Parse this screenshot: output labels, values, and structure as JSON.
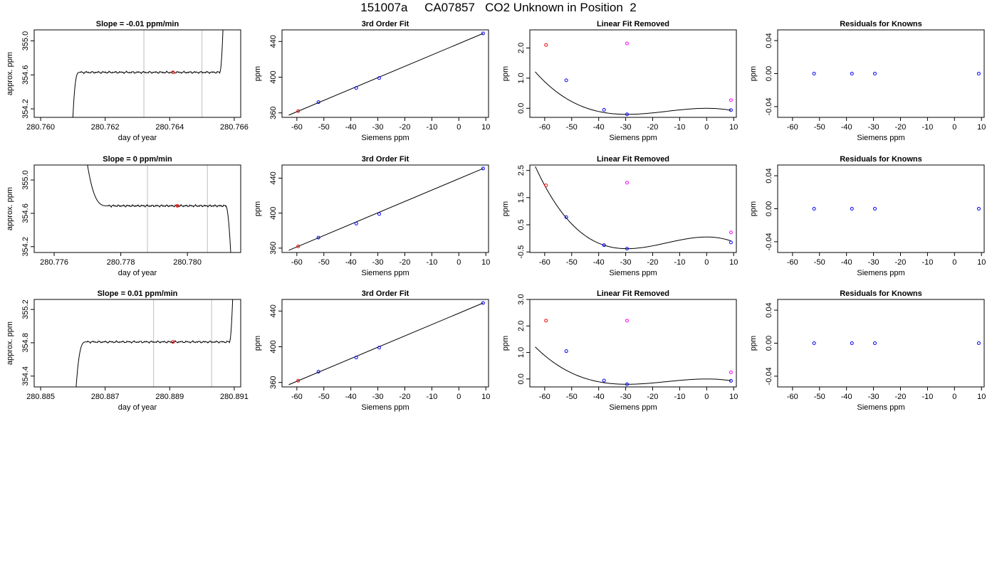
{
  "title": "151007a     CA07857   CO2 Unknown in Position  2",
  "chart_data": [
    {
      "panel": "row1-col1",
      "type": "line",
      "title": "Slope =  -0.01  ppm/min",
      "xlabel": "day of year",
      "ylabel": "approx. ppm",
      "xlim": [
        280.7598,
        280.7662
      ],
      "ylim": [
        354.1,
        355.13
      ],
      "xticks": [
        "280.760",
        "280.762",
        "280.764",
        "280.766"
      ],
      "yticks": [
        "354.2",
        "354.6",
        "355.0"
      ],
      "vlines": [
        280.7632,
        280.765
      ],
      "marker": {
        "x": 280.7641,
        "y": 354.63,
        "color": "#ff0000"
      },
      "trace": {
        "x_start": 280.761,
        "x_rise_end": 280.7612,
        "x_plateau_end": 280.76555,
        "x_end": 280.76565,
        "y_start": 354.1,
        "plateau": 354.63,
        "y_end": 355.13
      }
    },
    {
      "panel": "row1-col2",
      "type": "scatter",
      "title": "3rd Order Fit",
      "xlabel": "Siemens ppm",
      "ylabel": "ppm",
      "xlim": [
        -65.5,
        11
      ],
      "ylim": [
        355,
        453
      ],
      "xticks": [
        "-60",
        "-50",
        "-40",
        "-30",
        "-20",
        "-10",
        "0",
        "10"
      ],
      "yticks": [
        "360",
        "400",
        "440"
      ],
      "points": [
        {
          "x": -59.5,
          "y": 362,
          "color": "#ff0000"
        },
        {
          "x": -52,
          "y": 372,
          "color": "#0000ff"
        },
        {
          "x": -38,
          "y": 388,
          "color": "#0000ff"
        },
        {
          "x": -29.5,
          "y": 399,
          "color": "#0000ff"
        },
        {
          "x": 9,
          "y": 449,
          "color": "#0000ff"
        }
      ],
      "fit": {
        "x": [
          -63,
          9
        ],
        "y": [
          357.5,
          449
        ]
      }
    },
    {
      "panel": "row1-col3",
      "type": "scatter",
      "title": "Linear Fit Removed",
      "xlabel": "Siemens ppm",
      "ylabel": "ppm",
      "xlim": [
        -65.5,
        11
      ],
      "ylim": [
        -0.3,
        2.6
      ],
      "xticks": [
        "-60",
        "-50",
        "-40",
        "-30",
        "-20",
        "-10",
        "0",
        "10"
      ],
      "yticks": [
        "0.0",
        "1.0",
        "2.0"
      ],
      "points": [
        {
          "x": -59.5,
          "y": 2.1,
          "color": "#ff0000"
        },
        {
          "x": -52,
          "y": 0.93,
          "color": "#0000ff"
        },
        {
          "x": -38,
          "y": -0.05,
          "color": "#0000ff"
        },
        {
          "x": -29.5,
          "y": -0.2,
          "color": "#0000ff"
        },
        {
          "x": 9,
          "y": -0.06,
          "color": "#0000ff"
        },
        {
          "x": -29.5,
          "y": 2.15,
          "color": "#ff00ff"
        },
        {
          "x": 9,
          "y": 0.27,
          "color": "#ff00ff"
        }
      ],
      "curve": {
        "x_from": -63.5,
        "x_to": 9,
        "cubic": {
          "x0": -29.5,
          "x1": 0,
          "y0": -0.2,
          "y1": 0.0
        }
      }
    },
    {
      "panel": "row1-col4",
      "type": "scatter",
      "title": "Residuals for Knowns",
      "xlabel": "Siemens ppm",
      "ylabel": "ppm",
      "xlim": [
        -65.5,
        11
      ],
      "ylim": [
        -0.053,
        0.053
      ],
      "xticks": [
        "-60",
        "-50",
        "-40",
        "-30",
        "-20",
        "-10",
        "0",
        "10"
      ],
      "yticks": [
        "-0.04",
        "0.00",
        "0.04"
      ],
      "points": [
        {
          "x": -52,
          "y": 0.0,
          "color": "#0000ff"
        },
        {
          "x": -38,
          "y": 0.0,
          "color": "#0000ff"
        },
        {
          "x": -29.5,
          "y": 0.0,
          "color": "#0000ff"
        },
        {
          "x": 9,
          "y": 0.0,
          "color": "#0000ff"
        }
      ]
    },
    {
      "panel": "row2-col1",
      "type": "line",
      "title": "Slope =  0  ppm/min",
      "xlabel": "day of year",
      "ylabel": "approx. ppm",
      "xlim": [
        280.7754,
        280.7816
      ],
      "ylim": [
        354.13,
        355.18
      ],
      "xticks": [
        "280.776",
        "280.778",
        "280.780"
      ],
      "yticks": [
        "354.2",
        "354.6",
        "355.0"
      ],
      "vlines": [
        280.7788,
        280.7806
      ],
      "marker": {
        "x": 280.7797,
        "y": 354.69,
        "color": "#ff0000"
      },
      "trace": {
        "x_start": 280.777,
        "x_fall_end": 280.7776,
        "x_plateau_end": 280.78115,
        "x_end": 280.7813,
        "y_start": 355.18,
        "plateau": 354.69,
        "y_end": 354.13
      }
    },
    {
      "panel": "row2-col2",
      "type": "scatter",
      "title": "3rd Order Fit",
      "xlabel": "Siemens ppm",
      "ylabel": "ppm",
      "xlim": [
        -65.5,
        11
      ],
      "ylim": [
        355,
        455
      ],
      "xticks": [
        "-60",
        "-50",
        "-40",
        "-30",
        "-20",
        "-10",
        "0",
        "10"
      ],
      "yticks": [
        "360",
        "400",
        "440"
      ],
      "points": [
        {
          "x": -59.5,
          "y": 362,
          "color": "#ff0000"
        },
        {
          "x": -52,
          "y": 372,
          "color": "#0000ff"
        },
        {
          "x": -38,
          "y": 388,
          "color": "#0000ff"
        },
        {
          "x": -29.5,
          "y": 399,
          "color": "#0000ff"
        },
        {
          "x": 9,
          "y": 451,
          "color": "#0000ff"
        }
      ],
      "fit": {
        "x": [
          -63,
          9
        ],
        "y": [
          357.5,
          451
        ]
      }
    },
    {
      "panel": "row2-col3",
      "type": "scatter",
      "title": "Linear Fit Removed",
      "xlabel": "Siemens ppm",
      "ylabel": "ppm",
      "xlim": [
        -65.5,
        11
      ],
      "ylim": [
        -0.52,
        2.7
      ],
      "xticks": [
        "-60",
        "-50",
        "-40",
        "-30",
        "-20",
        "-10",
        "0",
        "10"
      ],
      "yticks": [
        "-0.5",
        "0.5",
        "1.5",
        "2.5"
      ],
      "points": [
        {
          "x": -59.5,
          "y": 1.95,
          "color": "#ff0000"
        },
        {
          "x": -52,
          "y": 0.78,
          "color": "#0000ff"
        },
        {
          "x": -38,
          "y": -0.25,
          "color": "#0000ff"
        },
        {
          "x": -29.5,
          "y": -0.38,
          "color": "#0000ff"
        },
        {
          "x": 9,
          "y": -0.15,
          "color": "#0000ff"
        },
        {
          "x": -29.5,
          "y": 2.05,
          "color": "#ff00ff"
        },
        {
          "x": 9,
          "y": 0.22,
          "color": "#ff00ff"
        }
      ],
      "curve": {
        "x_from": -63.5,
        "x_to": 9,
        "cubic": {
          "x0": -29.5,
          "x1": 0,
          "y0": -0.38,
          "y1": 0.05
        }
      }
    },
    {
      "panel": "row2-col4",
      "type": "scatter",
      "title": "Residuals for Knowns",
      "xlabel": "Siemens ppm",
      "ylabel": "ppm",
      "xlim": [
        -65.5,
        11
      ],
      "ylim": [
        -0.053,
        0.053
      ],
      "xticks": [
        "-60",
        "-50",
        "-40",
        "-30",
        "-20",
        "-10",
        "0",
        "10"
      ],
      "yticks": [
        "-0.04",
        "0.00",
        "0.04"
      ],
      "points": [
        {
          "x": -52,
          "y": 0.0,
          "color": "#0000ff"
        },
        {
          "x": -38,
          "y": 0.0,
          "color": "#0000ff"
        },
        {
          "x": -29.5,
          "y": 0.0,
          "color": "#0000ff"
        },
        {
          "x": 9,
          "y": 0.0,
          "color": "#0000ff"
        }
      ]
    },
    {
      "panel": "row3-col1",
      "type": "line",
      "title": "Slope =  0.01  ppm/min",
      "xlabel": "day of year",
      "ylabel": "approx. ppm",
      "xlim": [
        280.8848,
        280.8912
      ],
      "ylim": [
        354.27,
        355.32
      ],
      "xticks": [
        "280.885",
        "280.887",
        "280.889",
        "280.891"
      ],
      "yticks": [
        "354.4",
        "354.8",
        "355.2"
      ],
      "vlines": [
        280.8885,
        280.8903
      ],
      "marker": {
        "x": 280.8891,
        "y": 354.81,
        "color": "#ff0000"
      },
      "trace": {
        "x_start": 280.8861,
        "x_rise_end": 280.8864,
        "x_plateau_end": 280.89085,
        "x_end": 280.89095,
        "y_start": 354.27,
        "plateau": 354.81,
        "y_end": 355.32
      }
    },
    {
      "panel": "row3-col2",
      "type": "scatter",
      "title": "3rd Order Fit",
      "xlabel": "Siemens ppm",
      "ylabel": "ppm",
      "xlim": [
        -65.5,
        11
      ],
      "ylim": [
        355,
        453
      ],
      "xticks": [
        "-60",
        "-50",
        "-40",
        "-30",
        "-20",
        "-10",
        "0",
        "10"
      ],
      "yticks": [
        "360",
        "400",
        "440"
      ],
      "points": [
        {
          "x": -59.5,
          "y": 362,
          "color": "#ff0000"
        },
        {
          "x": -52,
          "y": 372,
          "color": "#0000ff"
        },
        {
          "x": -38,
          "y": 388,
          "color": "#0000ff"
        },
        {
          "x": -29.5,
          "y": 399,
          "color": "#0000ff"
        },
        {
          "x": 9,
          "y": 449,
          "color": "#0000ff"
        }
      ],
      "fit": {
        "x": [
          -63,
          9
        ],
        "y": [
          357.5,
          449
        ]
      }
    },
    {
      "panel": "row3-col3",
      "type": "scatter",
      "title": "Linear Fit Removed",
      "xlabel": "Siemens ppm",
      "ylabel": "ppm",
      "xlim": [
        -65.5,
        11
      ],
      "ylim": [
        -0.3,
        3.0
      ],
      "xticks": [
        "-60",
        "-50",
        "-40",
        "-30",
        "-20",
        "-10",
        "0",
        "10"
      ],
      "yticks": [
        "0.0",
        "1.0",
        "2.0",
        "3.0"
      ],
      "points": [
        {
          "x": -59.5,
          "y": 2.2,
          "color": "#ff0000"
        },
        {
          "x": -52,
          "y": 1.05,
          "color": "#0000ff"
        },
        {
          "x": -38,
          "y": -0.06,
          "color": "#0000ff"
        },
        {
          "x": -29.5,
          "y": -0.2,
          "color": "#0000ff"
        },
        {
          "x": 9,
          "y": -0.07,
          "color": "#0000ff"
        },
        {
          "x": -29.5,
          "y": 2.2,
          "color": "#ff00ff"
        },
        {
          "x": 9,
          "y": 0.25,
          "color": "#ff00ff"
        }
      ],
      "curve": {
        "x_from": -63.5,
        "x_to": 9,
        "cubic": {
          "x0": -29.5,
          "x1": 0,
          "y0": -0.2,
          "y1": 0.0
        }
      }
    },
    {
      "panel": "row3-col4",
      "type": "scatter",
      "title": "Residuals for Knowns",
      "xlabel": "Siemens ppm",
      "ylabel": "ppm",
      "xlim": [
        -65.5,
        11
      ],
      "ylim": [
        -0.053,
        0.053
      ],
      "xticks": [
        "-60",
        "-50",
        "-40",
        "-30",
        "-20",
        "-10",
        "0",
        "10"
      ],
      "yticks": [
        "-0.04",
        "0.00",
        "0.04"
      ],
      "points": [
        {
          "x": -52,
          "y": 0.0,
          "color": "#0000ff"
        },
        {
          "x": -38,
          "y": 0.0,
          "color": "#0000ff"
        },
        {
          "x": -29.5,
          "y": 0.0,
          "color": "#0000ff"
        },
        {
          "x": 9,
          "y": 0.0,
          "color": "#0000ff"
        }
      ]
    }
  ]
}
